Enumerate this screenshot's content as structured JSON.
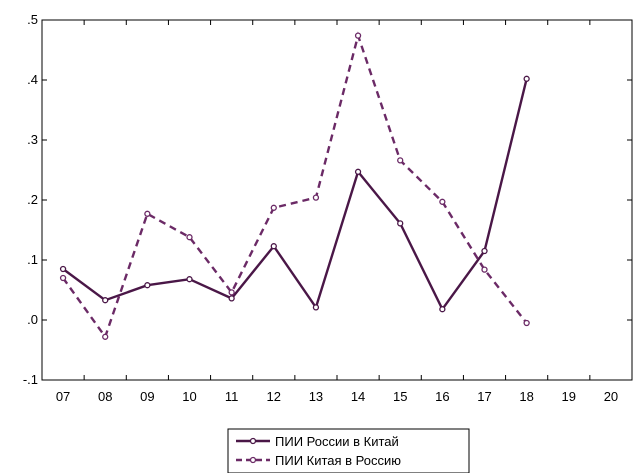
{
  "chart_data": {
    "type": "line",
    "x": [
      "07",
      "08",
      "09",
      "10",
      "11",
      "12",
      "13",
      "14",
      "15",
      "16",
      "17",
      "18",
      "19",
      "20"
    ],
    "yticks": [
      -0.1,
      0.0,
      0.1,
      0.2,
      0.3,
      0.4,
      0.5
    ],
    "ytick_labels": [
      "-.1",
      ".0",
      ".1",
      ".2",
      ".3",
      ".4",
      ".5"
    ],
    "ylim": [
      -0.1,
      0.5
    ],
    "grid": false,
    "legend_position": "bottom-center",
    "series": [
      {
        "name": "ПИИ России в Китай",
        "style": "solid",
        "color": "#4a1747",
        "values": [
          0.085,
          0.033,
          0.058,
          0.068,
          0.036,
          0.123,
          0.021,
          0.247,
          0.161,
          0.018,
          0.115,
          0.402,
          null,
          null
        ]
      },
      {
        "name": "ПИИ Китая в Россию",
        "style": "dashed",
        "color": "#6b2a66",
        "values": [
          0.07,
          -0.028,
          0.177,
          0.138,
          0.046,
          0.187,
          0.204,
          0.474,
          0.266,
          0.197,
          0.084,
          -0.005,
          null,
          null
        ]
      }
    ]
  }
}
